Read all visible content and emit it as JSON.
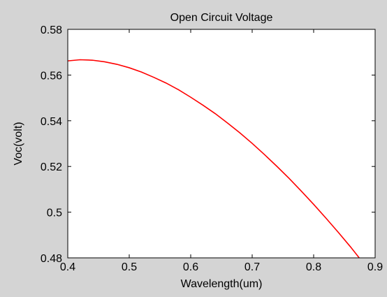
{
  "colors": {
    "figure_background": "#d4d4d4",
    "plot_background": "#ffffff",
    "axes": "#000000",
    "line": "#ff0000"
  },
  "chart_data": {
    "type": "line",
    "title": "Open Circuit Voltage",
    "xlabel": "Wavelength(um)",
    "ylabel": "Voc(volt)",
    "xlim": [
      0.4,
      0.9
    ],
    "ylim": [
      0.48,
      0.58
    ],
    "xticks": [
      0.4,
      0.5,
      0.6,
      0.7,
      0.8,
      0.9
    ],
    "xtick_labels": [
      "0.4",
      "0.5",
      "0.6",
      "0.7",
      "0.8",
      "0.9"
    ],
    "yticks": [
      0.48,
      0.5,
      0.52,
      0.54,
      0.56,
      0.58
    ],
    "ytick_labels": [
      "0.48",
      "0.5",
      "0.52",
      "0.54",
      "0.56",
      "0.58"
    ],
    "grid": false,
    "series": [
      {
        "color": "#ff0000",
        "x": [
          0.4,
          0.42,
          0.44,
          0.46,
          0.48,
          0.5,
          0.52,
          0.54,
          0.56,
          0.58,
          0.6,
          0.62,
          0.64,
          0.66,
          0.68,
          0.7,
          0.72,
          0.74,
          0.76,
          0.78,
          0.8,
          0.82,
          0.84,
          0.86,
          0.88,
          0.9
        ],
        "y": [
          0.5662,
          0.5667,
          0.5665,
          0.5658,
          0.5647,
          0.5632,
          0.5613,
          0.559,
          0.5565,
          0.5536,
          0.5503,
          0.5468,
          0.5431,
          0.539,
          0.5347,
          0.5301,
          0.5252,
          0.5201,
          0.5148,
          0.5092,
          0.5034,
          0.4974,
          0.4912,
          0.4848,
          0.478,
          0.4735
        ]
      }
    ]
  }
}
